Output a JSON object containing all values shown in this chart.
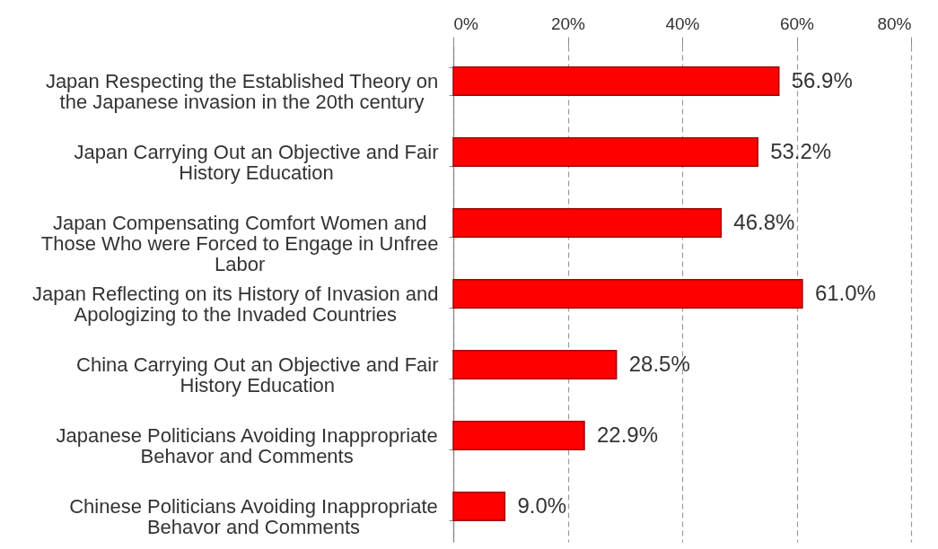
{
  "chart_data": {
    "type": "bar",
    "orientation": "horizontal",
    "categories": [
      "Japan Respecting the Established Theory on the Japanese invasion in the 20th century",
      "Japan Carrying Out an Objective and Fair History Education",
      "Japan Compensating Comfort Women and Those Who were Forced to Engage in Unfree Labor",
      "Japan Reflecting on its History of Invasion and Apologizing to the Invaded Countries",
      "China Carrying Out an Objective and Fair History Education",
      "Japanese Politicians Avoiding Inappropriate Behavor and Comments",
      "Chinese Politicians Avoiding Inappropriate Behavor and Comments"
    ],
    "values": [
      56.9,
      53.2,
      46.8,
      61.0,
      28.5,
      22.9,
      9.0
    ],
    "value_labels": [
      "56.9%",
      "53.2%",
      "46.8%",
      "61.0%",
      "28.5%",
      "22.9%",
      "9.0%"
    ],
    "color": "#ff0000",
    "xlim": [
      0,
      80
    ],
    "xticks": [
      {
        "value": 0,
        "label": "0%"
      },
      {
        "value": 20,
        "label": "20%"
      },
      {
        "value": 40,
        "label": "40%"
      },
      {
        "value": 60,
        "label": "60%"
      },
      {
        "value": 80,
        "label": "80%"
      }
    ],
    "grid": "x"
  }
}
